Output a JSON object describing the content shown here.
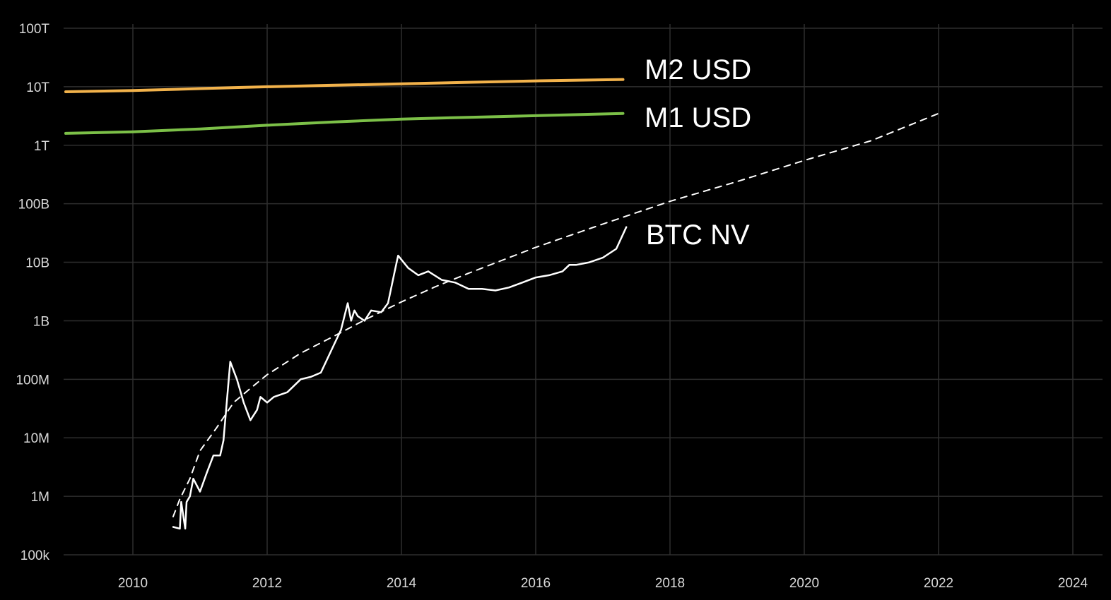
{
  "chart_data": {
    "type": "line",
    "title": "",
    "xlabel": "",
    "ylabel": "",
    "y_scale": "log",
    "grid": true,
    "background_color": "#000000",
    "xlim": [
      2009.0,
      2025.0
    ],
    "ylim": [
      100000,
      100000000000000
    ],
    "x_ticks": [
      2010,
      2012,
      2014,
      2016,
      2018,
      2020,
      2022,
      2024
    ],
    "x_tick_labels": [
      "2010",
      "2012",
      "2014",
      "2016",
      "2018",
      "2020",
      "2022",
      "2024"
    ],
    "y_ticks": [
      100000,
      1000000,
      10000000,
      100000000,
      1000000000,
      10000000000,
      100000000000,
      1000000000000,
      10000000000000,
      100000000000000
    ],
    "y_tick_labels": [
      "100k",
      "1M",
      "10M",
      "100M",
      "1B",
      "10B",
      "100B",
      "1T",
      "10T",
      "100T"
    ],
    "series": [
      {
        "name": "M2 USD",
        "color": "#f2b24b",
        "style": "solid",
        "x": [
          2009.0,
          2010.0,
          2011.0,
          2012.0,
          2013.0,
          2014.0,
          2015.0,
          2016.0,
          2017.3
        ],
        "y": [
          8200000000000,
          8600000000000,
          9300000000000,
          10000000000000,
          10600000000000,
          11200000000000,
          11900000000000,
          12600000000000,
          13300000000000
        ]
      },
      {
        "name": "M1 USD",
        "color": "#7cc048",
        "style": "solid",
        "x": [
          2009.0,
          2010.0,
          2011.0,
          2012.0,
          2013.0,
          2014.0,
          2015.0,
          2016.0,
          2017.3
        ],
        "y": [
          1600000000000,
          1700000000000,
          1900000000000,
          2200000000000,
          2500000000000,
          2800000000000,
          3000000000000,
          3200000000000,
          3500000000000
        ]
      },
      {
        "name": "BTC NV",
        "color": "#ffffff",
        "style": "solid",
        "x": [
          2010.6,
          2010.7,
          2010.72,
          2010.78,
          2010.8,
          2010.85,
          2010.9,
          2011.0,
          2011.1,
          2011.2,
          2011.3,
          2011.35,
          2011.45,
          2011.55,
          2011.65,
          2011.75,
          2011.85,
          2011.9,
          2012.0,
          2012.1,
          2012.3,
          2012.5,
          2012.65,
          2012.8,
          2013.0,
          2013.1,
          2013.2,
          2013.25,
          2013.3,
          2013.35,
          2013.45,
          2013.55,
          2013.7,
          2013.8,
          2013.9,
          2013.95,
          2014.1,
          2014.25,
          2014.4,
          2014.6,
          2014.8,
          2015.0,
          2015.2,
          2015.4,
          2015.6,
          2015.8,
          2016.0,
          2016.2,
          2016.4,
          2016.5,
          2016.6,
          2016.8,
          2017.0,
          2017.2,
          2017.35
        ],
        "y": [
          300000,
          280000,
          800000,
          280000,
          800000,
          1000000,
          2000000,
          1200000,
          2500000,
          5000000,
          5000000,
          9000000,
          200000000,
          100000000,
          40000000,
          20000000,
          30000000,
          50000000,
          40000000,
          50000000,
          60000000,
          100000000,
          110000000,
          130000000,
          400000000,
          700000000,
          2000000000,
          1000000000,
          1500000000,
          1200000000,
          1000000000,
          1500000000,
          1400000000,
          2000000000,
          7000000000,
          13000000000,
          8000000000,
          6000000000,
          7000000000,
          5000000000,
          4500000000,
          3500000000,
          3500000000,
          3300000000,
          3700000000,
          4500000000,
          5500000000,
          6000000000,
          7000000000,
          9000000000,
          9000000000,
          10000000000,
          12000000000,
          17000000000,
          40000000000
        ]
      },
      {
        "name": "",
        "color": "#ffffff",
        "style": "dashed",
        "x": [
          2010.6,
          2010.7,
          2010.85,
          2011.0,
          2011.25,
          2011.5,
          2011.75,
          2012.0,
          2012.5,
          2013.0,
          2013.5,
          2014.0,
          2014.5,
          2015.0,
          2016.0,
          2017.0,
          2018.0,
          2019.0,
          2020.0,
          2021.0,
          2022.0
        ],
        "y": [
          450000,
          900000,
          2000000,
          6000000,
          15000000,
          40000000,
          70000000,
          120000000,
          280000000,
          550000000,
          1100000000,
          2100000000,
          3800000000,
          6500000000,
          18000000000,
          45000000000,
          110000000000,
          240000000000,
          550000000000,
          1200000000000,
          3500000000000
        ]
      }
    ]
  }
}
